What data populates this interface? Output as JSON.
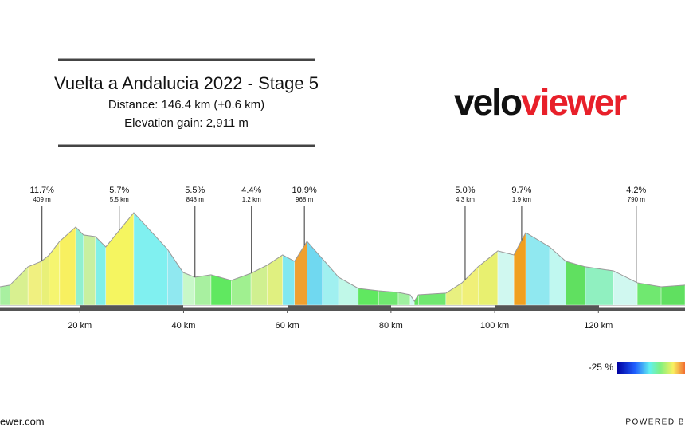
{
  "chart_data": {
    "type": "area",
    "title": "Vuelta a Andalucia 2022 - Stage 5",
    "subtitle": [
      "Distance: 146.4 km (+0.6 km)",
      "Elevation gain: 2,911 m"
    ],
    "logo": [
      "velo",
      "viewer"
    ],
    "x": [
      4.6,
      6.5,
      10.0,
      12.6,
      14.1,
      16.1,
      19.2,
      20.7,
      23.0,
      25.0,
      30.4,
      36.9,
      39.9,
      42.2,
      45.3,
      49.2,
      53.0,
      56.1,
      59.1,
      61.4,
      63.8,
      66.8,
      69.9,
      73.7,
      77.6,
      81.4,
      83.7,
      84.5,
      85.3,
      90.6,
      93.7,
      96.8,
      100.6,
      103.7,
      106.0,
      110.6,
      113.7,
      117.5,
      122.9,
      127.5,
      132.1,
      136.7
    ],
    "values": [
      200,
      218,
      418,
      479,
      548,
      696,
      853,
      766,
      748,
      635,
      1009,
      609,
      357,
      305,
      331,
      270,
      348,
      435,
      548,
      479,
      696,
      505,
      305,
      183,
      157,
      139,
      113,
      44,
      113,
      131,
      244,
      418,
      592,
      548,
      792,
      635,
      479,
      418,
      374,
      244,
      200,
      218
    ],
    "segment_colors": [
      "#a8f0a0",
      "#d8f090",
      "#f0f080",
      "#e8f078",
      "#f5f570",
      "#f8f060",
      "#90f0d0",
      "#c8f0a0",
      "#80f0e8",
      "#f5f560",
      "#80f0f0",
      "#90e8f0",
      "#c8f8c8",
      "#a8f0a0",
      "#60e860",
      "#a0f090",
      "#d0f090",
      "#e0f080",
      "#80e8f0",
      "#f0a030",
      "#70d8f0",
      "#a0f0f0",
      "#c0f8e8",
      "#60e860",
      "#70e870",
      "#a0f0a0",
      "#d0f8f0",
      "#60e060",
      "#70e870",
      "#e8f080",
      "#f0f078",
      "#e8f070",
      "#d0f8f0",
      "#f0a020",
      "#90e8f0",
      "#c0f8f0",
      "#60e060",
      "#90f0c0",
      "#d0f8f0",
      "#70e870",
      "#60e060"
    ],
    "xlim": [
      4.6,
      136.7
    ],
    "ylim": [
      0,
      1200
    ],
    "xticks": [
      {
        "value": 20,
        "label": "20 km"
      },
      {
        "value": 40,
        "label": "40 km"
      },
      {
        "value": 60,
        "label": "60 km"
      },
      {
        "value": 80,
        "label": "80 km"
      },
      {
        "value": 100,
        "label": "100 km"
      },
      {
        "value": 120,
        "label": "120 km"
      }
    ],
    "annotations": [
      {
        "x": 12.7,
        "gradient": "11.7%",
        "length": "409 m"
      },
      {
        "x": 27.6,
        "gradient": "5.7%",
        "length": "5.5 km"
      },
      {
        "x": 42.2,
        "gradient": "5.5%",
        "length": "848 m"
      },
      {
        "x": 53.1,
        "gradient": "4.4%",
        "length": "1.2 km"
      },
      {
        "x": 63.3,
        "gradient": "10.9%",
        "length": "968 m"
      },
      {
        "x": 94.3,
        "gradient": "5.0%",
        "length": "4.3 km"
      },
      {
        "x": 105.2,
        "gradient": "9.7%",
        "length": "1.9 km"
      },
      {
        "x": 127.3,
        "gradient": "4.2%",
        "length": "790 m"
      }
    ],
    "legend_label": "-25 %",
    "footer_left": "ewer.com",
    "footer_right": "POWERED B"
  }
}
